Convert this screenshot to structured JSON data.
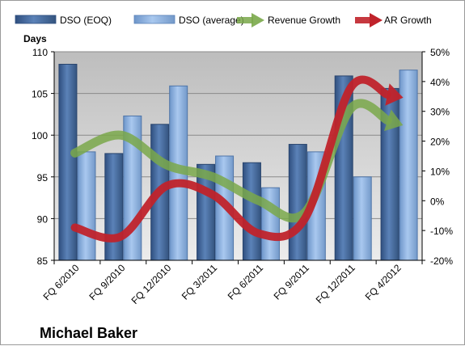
{
  "chart_data": {
    "type": "bar",
    "title": "",
    "company_label": "Michael Baker",
    "categories": [
      "FQ 6/2010",
      "FQ 9/2010",
      "FQ 12/2010",
      "FQ 3/2011",
      "FQ 6/2011",
      "FQ 9/2011",
      "FQ 12/2011",
      "FQ 4/2012"
    ],
    "ylabel": "Days",
    "ylim": [
      85,
      110
    ],
    "yticks": [
      85,
      90,
      95,
      100,
      105,
      110
    ],
    "y2lim": [
      -20,
      50
    ],
    "y2ticks": [
      "-20%",
      "-10%",
      "0%",
      "10%",
      "20%",
      "30%",
      "40%",
      "50%"
    ],
    "y2values": [
      -20,
      -10,
      0,
      10,
      20,
      30,
      40,
      50
    ],
    "legend_position": "top",
    "grid": true,
    "series": [
      {
        "name": "DSO (EOQ)",
        "kind": "bar",
        "color": "#4a6fa5",
        "values": [
          108.5,
          97.8,
          101.3,
          96.5,
          96.7,
          98.9,
          107.1,
          105.6
        ]
      },
      {
        "name": "DSO (average)",
        "kind": "bar",
        "color": "#8fb4e3",
        "values": [
          98.0,
          102.3,
          105.9,
          97.5,
          93.7,
          98.0,
          95.0,
          107.8
        ]
      },
      {
        "name": "Revenue Growth",
        "kind": "line",
        "axis": "right",
        "color": "#7aa84a",
        "values": [
          16,
          22,
          12,
          8,
          0,
          -4,
          31,
          26
        ]
      },
      {
        "name": "AR Growth",
        "kind": "line",
        "axis": "right",
        "color": "#c0232b",
        "values": [
          -9,
          -12,
          5,
          2,
          -11,
          -6,
          38,
          35
        ]
      }
    ]
  }
}
